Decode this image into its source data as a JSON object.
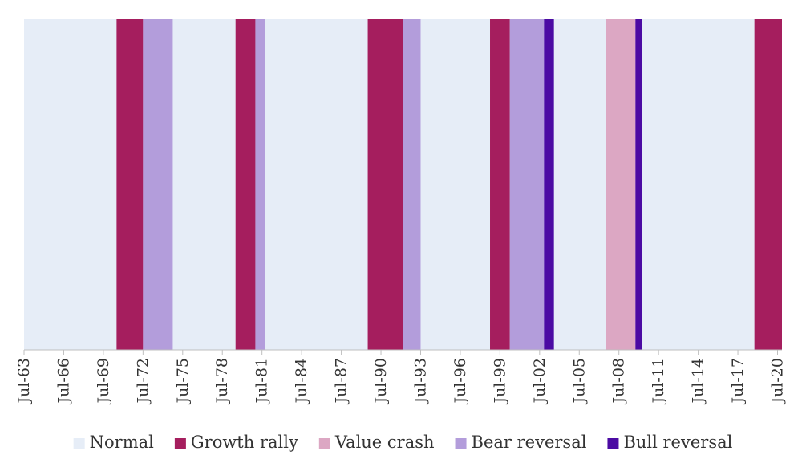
{
  "chart_data": {
    "type": "bar",
    "title": "",
    "xlabel": "",
    "ylabel": "",
    "x_ticks": [
      "Jul-63",
      "Jul-66",
      "Jul-69",
      "Jul-72",
      "Jul-75",
      "Jul-78",
      "Jul-81",
      "Jul-84",
      "Jul-87",
      "Jul-90",
      "Jul-93",
      "Jul-96",
      "Jul-99",
      "Jul-02",
      "Jul-05",
      "Jul-08",
      "Jul-11",
      "Jul-14",
      "Jul-17",
      "Jul-20"
    ],
    "x_range": [
      "1963-07",
      "2020-11"
    ],
    "background_regime": "Normal",
    "regimes": [
      {
        "name": "Normal",
        "color": "#e6edf7"
      },
      {
        "name": "Growth rally",
        "color": "#a51e5e"
      },
      {
        "name": "Value crash",
        "color": "#dca7c3"
      },
      {
        "name": "Bear reversal",
        "color": "#b39ddb"
      },
      {
        "name": "Bull reversal",
        "color": "#4b0ba3"
      }
    ],
    "periods": [
      {
        "regime": "Growth rally",
        "start": "1970-07",
        "end": "1972-07"
      },
      {
        "regime": "Bear reversal",
        "start": "1972-07",
        "end": "1974-10"
      },
      {
        "regime": "Growth rally",
        "start": "1979-07",
        "end": "1981-01"
      },
      {
        "regime": "Bear reversal",
        "start": "1981-01",
        "end": "1981-10"
      },
      {
        "regime": "Growth rally",
        "start": "1989-07",
        "end": "1992-03"
      },
      {
        "regime": "Bear reversal",
        "start": "1992-03",
        "end": "1993-07"
      },
      {
        "regime": "Growth rally",
        "start": "1998-10",
        "end": "2000-04"
      },
      {
        "regime": "Bear reversal",
        "start": "2000-04",
        "end": "2002-11"
      },
      {
        "regime": "Bull reversal",
        "start": "2002-11",
        "end": "2003-08"
      },
      {
        "regime": "Value crash",
        "start": "2007-07",
        "end": "2009-10"
      },
      {
        "regime": "Bull reversal",
        "start": "2009-10",
        "end": "2010-04"
      },
      {
        "regime": "Growth rally",
        "start": "2018-10",
        "end": "2021-02"
      },
      {
        "regime": "Bull reversal",
        "start": "2021-02",
        "end": "2021-08"
      }
    ],
    "legend_position": "bottom",
    "grid": false
  }
}
